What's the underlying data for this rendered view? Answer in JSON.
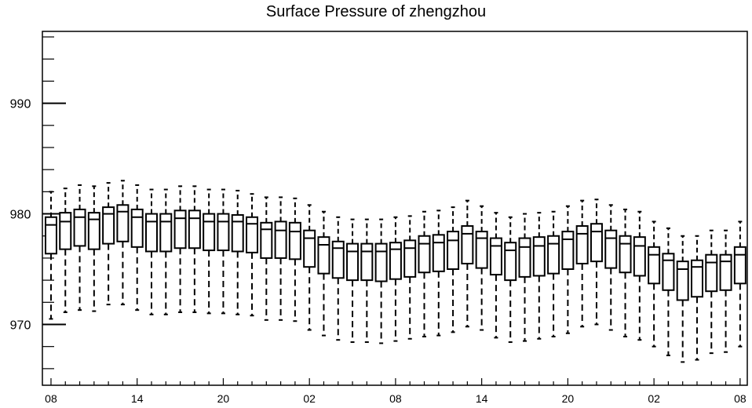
{
  "chart_data": {
    "type": "box",
    "title": "Surface Pressure of zhengzhou",
    "xlabel": "",
    "ylabel": "",
    "ylim": [
      964.5,
      996.5
    ],
    "y_ticks": [
      970,
      980,
      990
    ],
    "y_tick_labels": [
      "970",
      "980",
      "990"
    ],
    "x_tick_labels": [
      "08",
      "14",
      "20",
      "02",
      "08",
      "14",
      "20",
      "02",
      "08"
    ],
    "x_tick_label_positions": [
      0,
      6,
      12,
      18,
      24,
      30,
      36,
      42,
      48
    ],
    "grid": false,
    "legend": "none",
    "series": [
      {
        "times": [
          0,
          1,
          2,
          3,
          4,
          5,
          6,
          7,
          8,
          9,
          10,
          11,
          12,
          13,
          14,
          15,
          16,
          17,
          18,
          19,
          20,
          21,
          22,
          23,
          24,
          25,
          26,
          27,
          28,
          29,
          30,
          31,
          32,
          33,
          34,
          35,
          36,
          37,
          38,
          39,
          40,
          41,
          42,
          43,
          44,
          45,
          46,
          47,
          48
        ],
        "whisker_low": [
          970.5,
          971.1,
          971.3,
          971.2,
          971.8,
          971.8,
          971.3,
          970.9,
          970.9,
          971.1,
          971.1,
          971.0,
          971.0,
          970.9,
          970.8,
          970.4,
          970.4,
          970.3,
          969.5,
          969.0,
          968.6,
          968.4,
          968.4,
          968.3,
          968.5,
          968.7,
          968.9,
          969.0,
          969.3,
          969.8,
          969.5,
          968.8,
          968.4,
          968.5,
          968.7,
          968.9,
          969.2,
          969.8,
          970.0,
          969.5,
          968.9,
          968.6,
          968.0,
          967.2,
          966.6,
          966.8,
          967.4,
          967.5,
          968.0
        ],
        "q1": [
          976.4,
          976.8,
          977.1,
          976.8,
          977.3,
          977.5,
          977.0,
          976.6,
          976.6,
          976.9,
          976.9,
          976.7,
          976.7,
          976.6,
          976.5,
          976.0,
          976.0,
          975.9,
          975.2,
          974.6,
          974.2,
          974.0,
          974.0,
          973.9,
          974.1,
          974.3,
          974.7,
          974.8,
          975.0,
          975.5,
          975.1,
          974.5,
          974.0,
          974.3,
          974.4,
          974.6,
          975.0,
          975.5,
          975.7,
          975.1,
          974.7,
          974.4,
          973.7,
          973.1,
          972.2,
          972.5,
          973.0,
          973.1,
          973.7
        ],
        "median": [
          979.0,
          979.3,
          979.7,
          979.5,
          980.0,
          980.2,
          979.7,
          979.3,
          979.3,
          979.6,
          979.6,
          979.3,
          979.3,
          979.3,
          979.1,
          978.6,
          978.5,
          978.4,
          977.8,
          977.2,
          976.9,
          976.6,
          976.6,
          976.6,
          976.8,
          976.9,
          977.3,
          977.4,
          977.6,
          978.2,
          977.8,
          977.1,
          976.7,
          977.0,
          977.1,
          977.3,
          977.7,
          978.2,
          978.4,
          977.8,
          977.3,
          977.1,
          976.3,
          975.8,
          975.0,
          975.2,
          975.6,
          975.7,
          976.3
        ],
        "q3": [
          979.7,
          980.1,
          980.4,
          980.1,
          980.6,
          980.8,
          980.4,
          980.0,
          980.0,
          980.3,
          980.3,
          980.0,
          980.0,
          979.9,
          979.7,
          979.2,
          979.3,
          979.2,
          978.5,
          977.9,
          977.5,
          977.3,
          977.3,
          977.3,
          977.4,
          977.6,
          978.0,
          978.1,
          978.4,
          978.9,
          978.4,
          977.8,
          977.4,
          977.8,
          977.9,
          978.0,
          978.4,
          978.9,
          979.1,
          978.5,
          978.0,
          977.9,
          977.0,
          976.4,
          975.7,
          975.8,
          976.3,
          976.3,
          977.0
        ],
        "whisker_high": [
          982.0,
          982.3,
          982.6,
          982.5,
          982.8,
          983.0,
          982.6,
          982.2,
          982.2,
          982.5,
          982.5,
          982.2,
          982.2,
          982.1,
          981.8,
          981.5,
          981.5,
          981.4,
          980.8,
          980.2,
          979.7,
          979.5,
          979.5,
          979.5,
          979.7,
          979.8,
          980.2,
          980.3,
          980.6,
          981.2,
          980.7,
          980.1,
          979.7,
          980.0,
          980.1,
          980.2,
          980.7,
          981.2,
          981.3,
          980.8,
          980.4,
          980.2,
          979.3,
          978.7,
          978.0,
          978.0,
          978.5,
          978.5,
          979.3
        ]
      }
    ]
  }
}
